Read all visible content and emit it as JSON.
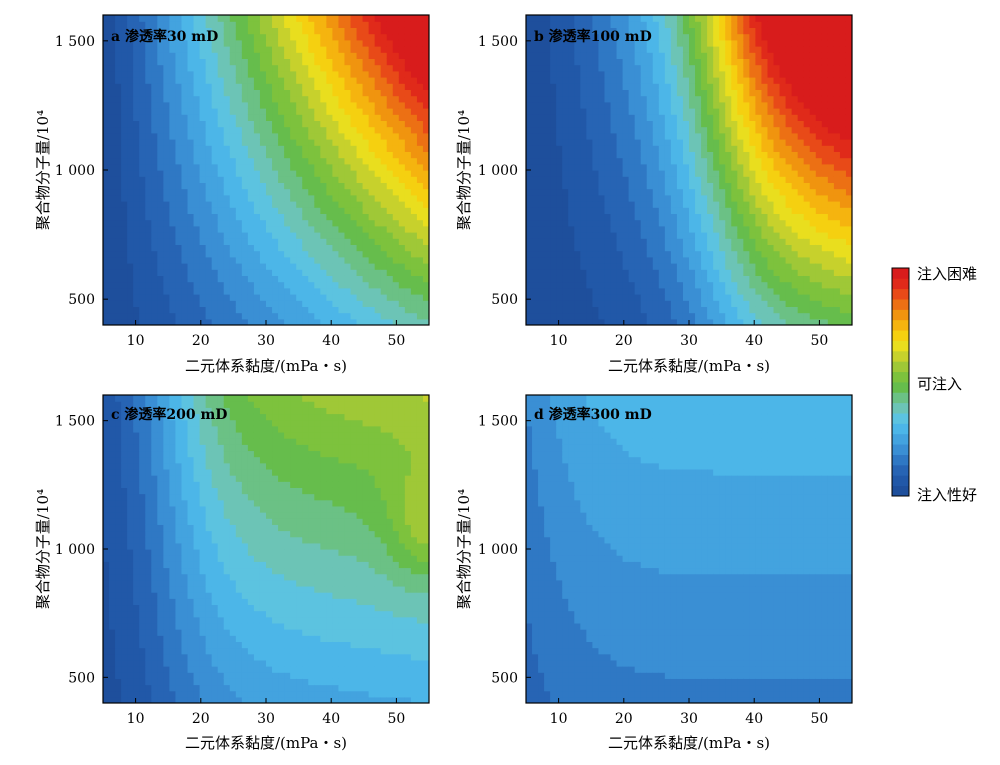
{
  "chart_data": [
    {
      "type": "contour",
      "panel_label": "a 渗透率30 mD",
      "xlabel": "二元体系黏度/(mPa・s)",
      "ylabel": "聚合物分子量/10⁴",
      "xlim": [
        5,
        55
      ],
      "ylim": [
        400,
        1600
      ],
      "x_ticks": [
        10,
        20,
        30,
        40,
        50
      ],
      "x_tick_labels": [
        "10",
        "20",
        "30",
        "40",
        "50"
      ],
      "y_ticks": [
        500,
        1000,
        1500
      ],
      "y_tick_labels": [
        "500",
        "1 000",
        "1 500"
      ],
      "z_model": {
        "a": 0.4,
        "b": 0.75,
        "c": 0.0,
        "d": 0.0,
        "e": 0.0,
        "f": 0.0,
        "g": 0.0
      },
      "summary": "injectability degrades toward high viscosity and high molecular weight; top-right region is hard to inject"
    },
    {
      "type": "contour",
      "panel_label": "b 渗透率100 mD",
      "xlabel": "二元体系黏度/(mPa・s)",
      "ylabel": "聚合物分子量/10⁴",
      "xlim": [
        5,
        55
      ],
      "ylim": [
        400,
        1600
      ],
      "x_ticks": [
        10,
        20,
        30,
        40,
        50
      ],
      "x_tick_labels": [
        "10",
        "20",
        "30",
        "40",
        "50"
      ],
      "y_ticks": [
        500,
        1000,
        1500
      ],
      "y_tick_labels": [
        "500",
        "1 000",
        "1 500"
      ],
      "z_model": {
        "a": 0.15,
        "b": 0.2,
        "c": 1.3,
        "d": 0.6,
        "e": 0.25,
        "f": 0.0,
        "g": 0.0
      },
      "summary": "good injectability at low viscosity; hard to inject only at the highest viscosity and molecular weight"
    },
    {
      "type": "contour",
      "panel_label": "c 渗透率200 mD",
      "xlabel": "二元体系黏度/(mPa・s)",
      "ylabel": "聚合物分子量/10⁴",
      "xlim": [
        5,
        55
      ],
      "ylim": [
        400,
        1600
      ],
      "x_ticks": [
        10,
        20,
        30,
        40,
        50
      ],
      "x_tick_labels": [
        "10",
        "20",
        "30",
        "40",
        "50"
      ],
      "y_ticks": [
        500,
        1000,
        1500
      ],
      "y_tick_labels": [
        "500",
        "1 000",
        "1 500"
      ],
      "z_model": {
        "a": 0.05,
        "b": 0.05,
        "c": 0.9,
        "d": 0.2,
        "e": 0.0,
        "f": 0.12,
        "g": 0.0
      },
      "summary": "mostly injectable; moderate values at high viscosity, best at low viscosity"
    },
    {
      "type": "contour",
      "panel_label": "d 渗透率300 mD",
      "xlabel": "二元体系黏度/(mPa・s)",
      "ylabel": "聚合物分子量/10⁴",
      "xlim": [
        5,
        55
      ],
      "ylim": [
        400,
        1600
      ],
      "x_ticks": [
        10,
        20,
        30,
        40,
        50
      ],
      "x_tick_labels": [
        "10",
        "20",
        "30",
        "40",
        "50"
      ],
      "y_ticks": [
        500,
        1000,
        1500
      ],
      "y_tick_labels": [
        "500",
        "1 000",
        "1 500"
      ],
      "z_model": {
        "a": 0.0,
        "b": 0.0,
        "c": 0.45,
        "d": 0.0,
        "e": 0.0,
        "f": 0.0,
        "g": 0.06
      },
      "summary": "good injectability across the whole range"
    }
  ],
  "colorbar": {
    "label_top": "注入困难",
    "label_mid": "可注入",
    "label_bottom": "注入性好",
    "colors_bottom_to_top": [
      "#1e4f9c",
      "#2158a8",
      "#2764b4",
      "#2f78c4",
      "#3a8fd4",
      "#43a3df",
      "#4cb6e8",
      "#5cc3e0",
      "#6cc4b6",
      "#6bc185",
      "#66bd4c",
      "#7dc23d",
      "#9fc837",
      "#c7d12c",
      "#e9de1e",
      "#f5d010",
      "#f5b40f",
      "#f0940f",
      "#ec7014",
      "#e84a18",
      "#e02a1a",
      "#d81c1c"
    ]
  }
}
